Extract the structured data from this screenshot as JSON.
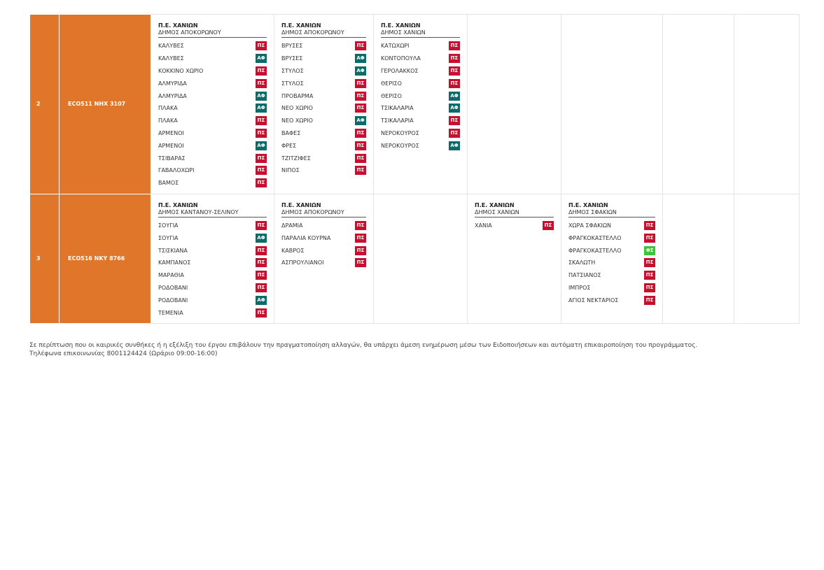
{
  "tag_colors": {
    "ΠΣ": "#c8102e",
    "ΑΦ": "#0b6b68",
    "ΦΣ": "#3cc43c"
  },
  "table": {
    "rows": [
      {
        "number": "2",
        "vehicle": "ECO511  NHX 3107",
        "cells": [
          {
            "region": "Π.Ε. ΧΑΝΙΩΝ",
            "municipality": "ΔΗΜΟΣ ΑΠΟΚΟΡΩΝΟΥ",
            "items": [
              {
                "name": "ΚΑΛΥΒΕΣ",
                "tag": "ΠΣ"
              },
              {
                "name": "ΚΑΛΥΒΕΣ",
                "tag": "ΑΦ"
              },
              {
                "name": "ΚΟΚΚΙΝΟ ΧΩΡΙΟ",
                "tag": "ΠΣ"
              },
              {
                "name": "ΑΛΜΥΡΙΔΑ",
                "tag": "ΠΣ"
              },
              {
                "name": "ΑΛΜΥΡΙΔΑ",
                "tag": "ΑΦ"
              },
              {
                "name": "ΠΛΑΚΑ",
                "tag": "ΑΦ"
              },
              {
                "name": "ΠΛΑΚΑ",
                "tag": "ΠΣ"
              },
              {
                "name": "ΑΡΜΕΝΟΙ",
                "tag": "ΠΣ"
              },
              {
                "name": "ΑΡΜΕΝΟΙ",
                "tag": "ΑΦ"
              },
              {
                "name": "ΤΣΙΒΑΡΑΣ",
                "tag": "ΠΣ"
              },
              {
                "name": "ΓΑΒΑΛΟΧΩΡΙ",
                "tag": "ΠΣ"
              },
              {
                "name": "ΒΑΜΟΣ",
                "tag": "ΠΣ"
              }
            ]
          },
          {
            "region": "Π.Ε. ΧΑΝΙΩΝ",
            "municipality": "ΔΗΜΟΣ ΑΠΟΚΟΡΩΝΟΥ",
            "items": [
              {
                "name": "ΒΡΥΣΕΣ",
                "tag": "ΠΣ"
              },
              {
                "name": "ΒΡΥΣΕΣ",
                "tag": "ΑΦ"
              },
              {
                "name": "ΣΤΥΛΟΣ",
                "tag": "ΑΦ"
              },
              {
                "name": "ΣΤΥΛΟΣ",
                "tag": "ΠΣ"
              },
              {
                "name": "ΠΡΟΒΑΡΜΑ",
                "tag": "ΠΣ"
              },
              {
                "name": "ΝΕΟ ΧΩΡΙΟ",
                "tag": "ΠΣ"
              },
              {
                "name": "ΝΕΟ ΧΩΡΙΟ",
                "tag": "ΑΦ"
              },
              {
                "name": "ΒΑΦΕΣ",
                "tag": "ΠΣ"
              },
              {
                "name": "ΦΡΕΣ",
                "tag": "ΠΣ"
              },
              {
                "name": "ΤΖΙΤΖΙΦΕΣ",
                "tag": "ΠΣ"
              },
              {
                "name": "ΝΙΠΟΣ",
                "tag": "ΠΣ"
              }
            ]
          },
          {
            "region": "Π.Ε. ΧΑΝΙΩΝ",
            "municipality": "ΔΗΜΟΣ ΧΑΝΙΩΝ",
            "items": [
              {
                "name": "ΚΑΤΩΧΩΡΙ",
                "tag": "ΠΣ"
              },
              {
                "name": "ΚΟΝΤΟΠΟΥΛΑ",
                "tag": "ΠΣ"
              },
              {
                "name": "ΓΕΡΟΛΑΚΚΟΣ",
                "tag": "ΠΣ"
              },
              {
                "name": "ΘΕΡΙΣΟ",
                "tag": "ΠΣ"
              },
              {
                "name": "ΘΕΡΙΣΟ",
                "tag": "ΑΦ"
              },
              {
                "name": "ΤΣΙΚΑΛΑΡΙΑ",
                "tag": "ΑΦ"
              },
              {
                "name": "ΤΣΙΚΑΛΑΡΙΑ",
                "tag": "ΠΣ"
              },
              {
                "name": "ΝΕΡΟΚΟΥΡΟΣ",
                "tag": "ΠΣ"
              },
              {
                "name": "ΝΕΡΟΚΟΥΡΟΣ",
                "tag": "ΑΦ"
              }
            ]
          },
          null,
          null,
          null,
          null
        ]
      },
      {
        "number": "3",
        "vehicle": "ECO516  NKY 8766",
        "cells": [
          {
            "region": "Π.Ε. ΧΑΝΙΩΝ",
            "municipality": "ΔΗΜΟΣ ΚΑΝΤΑΝΟΥ-ΣΕΛΙΝΟΥ",
            "items": [
              {
                "name": "ΣΟΥΓΙΑ",
                "tag": "ΠΣ"
              },
              {
                "name": "ΣΟΥΓΙΑ",
                "tag": "ΑΦ"
              },
              {
                "name": "ΤΣΙΣΚΙΑΝΑ",
                "tag": "ΠΣ"
              },
              {
                "name": "ΚΑΜΠΑΝΟΣ",
                "tag": "ΠΣ"
              },
              {
                "name": "ΜΑΡΑΘΙΑ",
                "tag": "ΠΣ"
              },
              {
                "name": "ΡΟΔΟΒΑΝΙ",
                "tag": "ΠΣ"
              },
              {
                "name": "ΡΟΔΟΒΑΝΙ",
                "tag": "ΑΦ"
              },
              {
                "name": "ΤΕΜΕΝΙΑ",
                "tag": "ΠΣ"
              }
            ]
          },
          {
            "region": "Π.Ε. ΧΑΝΙΩΝ",
            "municipality": "ΔΗΜΟΣ ΑΠΟΚΟΡΩΝΟΥ",
            "items": [
              {
                "name": "ΔΡΑΜΙΑ",
                "tag": "ΠΣ"
              },
              {
                "name": "ΠΑΡΑΛΙΑ ΚΟΥΡΝΑ",
                "tag": "ΠΣ"
              },
              {
                "name": "ΚΑΒΡΟΣ",
                "tag": "ΠΣ"
              },
              {
                "name": "ΑΣΠΡΟΥΛΙΑΝΟΙ",
                "tag": "ΠΣ"
              }
            ]
          },
          null,
          {
            "region": "Π.Ε. ΧΑΝΙΩΝ",
            "municipality": "ΔΗΜΟΣ ΧΑΝΙΩΝ",
            "items": [
              {
                "name": "ΧΑΝΙΑ",
                "tag": "ΠΣ"
              }
            ]
          },
          {
            "region": "Π.Ε. ΧΑΝΙΩΝ",
            "municipality": "ΔΗΜΟΣ ΣΦΑΚΙΩΝ",
            "items": [
              {
                "name": "ΧΩΡΑ ΣΦΑΚΙΩΝ",
                "tag": "ΠΣ"
              },
              {
                "name": "ΦΡΑΓΚΟΚΑΣΤΕΛΛΟ",
                "tag": "ΠΣ"
              },
              {
                "name": "ΦΡΑΓΚΟΚΑΣΤΕΛΛΟ",
                "tag": "ΦΣ"
              },
              {
                "name": "ΣΚΑΛΩΤΗ",
                "tag": "ΠΣ"
              },
              {
                "name": "ΠΑΤΣΙΑΝΟΣ",
                "tag": "ΠΣ"
              },
              {
                "name": "ΙΜΠΡΟΣ",
                "tag": "ΠΣ"
              },
              {
                "name": "ΑΓΙΟΣ ΝΕΚΤΑΡΙΟΣ",
                "tag": "ΠΣ"
              }
            ]
          },
          null,
          null
        ]
      }
    ]
  },
  "footer": {
    "lines": [
      "Σε περίπτωση που οι καιρικές συνθήκες ή η εξέλιξη του έργου επιβάλουν την πραγματοποίηση αλλαγών, θα υπάρχει άμεση ενημέρωση μέσω των Ειδοποιήσεων και αυτόματη επικαιροποίηση του προγράμματος.",
      "Τηλέφωνα επικοινωνίας 8001124424 (Ωράριο 09:00-16:00)"
    ]
  }
}
